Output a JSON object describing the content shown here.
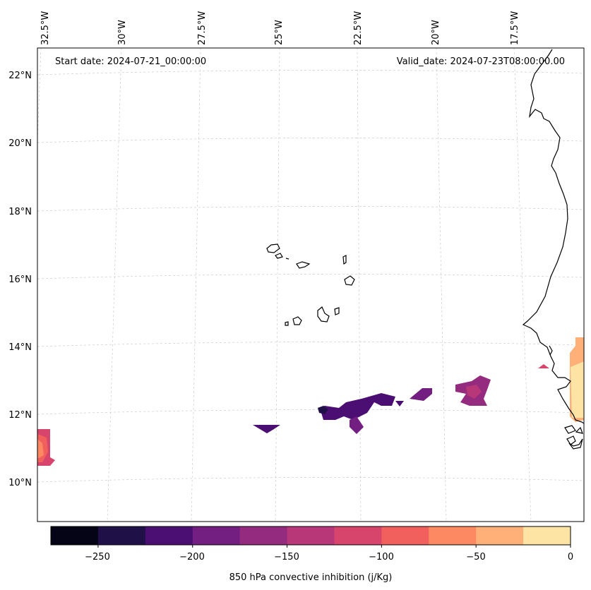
{
  "header": {
    "start_date": "Start date: 2024-07-21_00:00:00",
    "valid_date": "Valid_date: 2024-07-23T08:00:00.00"
  },
  "map": {
    "projection": "lambert-conformal",
    "lon_labels": [
      "32.5°W",
      "30°W",
      "27.5°W",
      "25°W",
      "22.5°W",
      "20°W",
      "17.5°W"
    ],
    "lat_labels": [
      "22°N",
      "20°N",
      "18°N",
      "16°N",
      "14°N",
      "12°N",
      "10°N"
    ],
    "gridlines": true,
    "features": [
      "Cape Verde islands",
      "West African coastline (Mauritania, Senegal, Gambia, Guinea-Bissau)"
    ]
  },
  "colorbar": {
    "label": "850 hPa convective inhibition (j/Kg)",
    "ticks": [
      "−250",
      "−200",
      "−150",
      "−100",
      "−50",
      "0"
    ],
    "levels": [
      -275,
      -250,
      -225,
      -200,
      -175,
      -150,
      -125,
      -100,
      -75,
      -50,
      -25,
      0
    ],
    "colors": [
      "#050316",
      "#1f1147",
      "#4b0f73",
      "#721f81",
      "#952b7f",
      "#b73779",
      "#d8456c",
      "#f1605d",
      "#fc8961",
      "#feb078",
      "#fde4a5"
    ]
  },
  "chart_data": {
    "type": "heatmap",
    "variable": "850 hPa convective inhibition",
    "units": "j/Kg",
    "value_range": [
      -275,
      0
    ],
    "shaded_regions": [
      {
        "area": "near 32.5°W, 11°N",
        "values": [
          -125,
          -100,
          -75
        ]
      },
      {
        "area": "near 25°W, 11.7°N",
        "values": [
          -200
        ]
      },
      {
        "area": "near 23°W–21°W, 12°N",
        "values": [
          -250,
          -225,
          -200,
          -175
        ]
      },
      {
        "area": "near 20°W–19°W, 12.5°N",
        "values": [
          -175,
          -150
        ]
      },
      {
        "area": "Senegal / Gambia coast, 12°N–14°N",
        "values": [
          -125,
          -50,
          -25,
          0
        ]
      }
    ]
  }
}
